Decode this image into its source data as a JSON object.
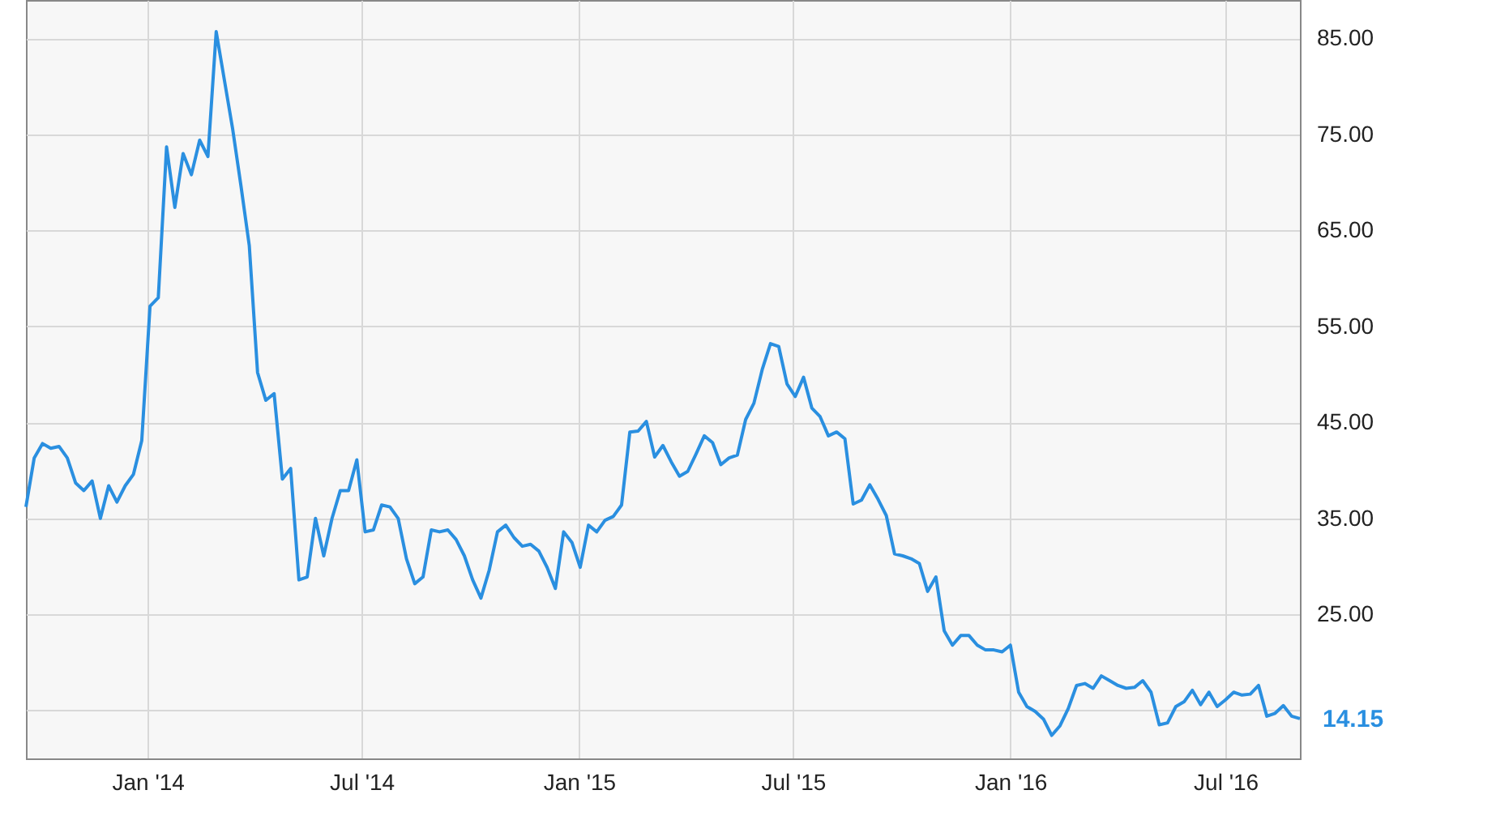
{
  "chart_data": {
    "type": "line",
    "x": [
      "2013-09-20",
      "2013-09-27",
      "2013-10-04",
      "2013-10-11",
      "2013-10-18",
      "2013-10-25",
      "2013-11-01",
      "2013-11-08",
      "2013-11-15",
      "2013-11-22",
      "2013-11-29",
      "2013-12-06",
      "2013-12-13",
      "2013-12-20",
      "2013-12-27",
      "2014-01-03",
      "2014-01-10",
      "2014-01-17",
      "2014-01-24",
      "2014-01-31",
      "2014-02-07",
      "2014-02-14",
      "2014-02-21",
      "2014-02-28",
      "2014-03-07",
      "2014-03-14",
      "2014-03-21",
      "2014-03-28",
      "2014-04-04",
      "2014-04-11",
      "2014-04-18",
      "2014-04-25",
      "2014-05-02",
      "2014-05-09",
      "2014-05-16",
      "2014-05-23",
      "2014-05-30",
      "2014-06-06",
      "2014-06-13",
      "2014-06-20",
      "2014-06-27",
      "2014-07-04",
      "2014-07-11",
      "2014-07-18",
      "2014-07-25",
      "2014-08-01",
      "2014-08-08",
      "2014-08-15",
      "2014-08-22",
      "2014-08-29",
      "2014-09-05",
      "2014-09-12",
      "2014-09-19",
      "2014-09-26",
      "2014-10-03",
      "2014-10-10",
      "2014-10-17",
      "2014-10-24",
      "2014-10-31",
      "2014-11-07",
      "2014-11-14",
      "2014-11-21",
      "2014-11-28",
      "2014-12-05",
      "2014-12-12",
      "2014-12-19",
      "2014-12-26",
      "2015-01-02",
      "2015-01-09",
      "2015-01-16",
      "2015-01-23",
      "2015-01-30",
      "2015-02-06",
      "2015-02-13",
      "2015-02-20",
      "2015-02-27",
      "2015-03-06",
      "2015-03-13",
      "2015-03-20",
      "2015-03-27",
      "2015-04-03",
      "2015-04-10",
      "2015-04-17",
      "2015-04-24",
      "2015-05-01",
      "2015-05-08",
      "2015-05-15",
      "2015-05-22",
      "2015-05-29",
      "2015-06-05",
      "2015-06-12",
      "2015-06-19",
      "2015-06-26",
      "2015-07-03",
      "2015-07-10",
      "2015-07-17",
      "2015-07-24",
      "2015-07-31",
      "2015-08-07",
      "2015-08-14",
      "2015-08-21",
      "2015-08-28",
      "2015-09-04",
      "2015-09-11",
      "2015-09-18",
      "2015-09-25",
      "2015-10-02",
      "2015-10-09",
      "2015-10-16",
      "2015-10-23",
      "2015-10-30",
      "2015-11-06",
      "2015-11-13",
      "2015-11-20",
      "2015-11-27",
      "2015-12-04",
      "2015-12-11",
      "2015-12-18",
      "2015-12-25",
      "2016-01-01",
      "2016-01-08",
      "2016-01-15",
      "2016-01-22",
      "2016-01-29",
      "2016-02-05",
      "2016-02-12",
      "2016-02-19",
      "2016-02-26",
      "2016-03-04",
      "2016-03-11",
      "2016-03-18",
      "2016-03-25",
      "2016-04-01",
      "2016-04-08",
      "2016-04-15",
      "2016-04-22",
      "2016-04-29",
      "2016-05-06",
      "2016-05-13",
      "2016-05-20",
      "2016-05-27",
      "2016-06-03",
      "2016-06-10",
      "2016-06-17",
      "2016-06-24",
      "2016-07-01",
      "2016-07-08",
      "2016-07-15",
      "2016-07-22",
      "2016-07-29",
      "2016-08-05",
      "2016-08-12",
      "2016-08-19",
      "2016-08-26",
      "2016-09-02"
    ],
    "series": [
      {
        "color": "#2a8fe0",
        "values": [
          36.2,
          41.3,
          42.8,
          42.3,
          42.5,
          41.3,
          38.7,
          37.9,
          38.9,
          35.0,
          38.4,
          36.7,
          38.4,
          39.6,
          43.1,
          57.1,
          58.0,
          73.7,
          67.4,
          73.0,
          70.8,
          74.4,
          72.7,
          85.7,
          80.6,
          75.5,
          69.6,
          63.4,
          50.2,
          47.3,
          48.0,
          39.1,
          40.2,
          28.6,
          28.9,
          35.0,
          31.1,
          35.0,
          37.9,
          37.9,
          41.1,
          33.6,
          33.8,
          36.4,
          36.2,
          35.0,
          30.8,
          28.2,
          28.9,
          33.8,
          33.6,
          33.8,
          32.8,
          31.1,
          28.6,
          26.7,
          29.6,
          33.6,
          34.3,
          33.0,
          32.1,
          32.3,
          31.6,
          29.9,
          27.7,
          33.6,
          32.5,
          29.9,
          34.3,
          33.6,
          34.8,
          35.2,
          36.4,
          44.0,
          44.1,
          45.1,
          41.4,
          42.6,
          40.9,
          39.4,
          39.9,
          41.7,
          43.6,
          42.9,
          40.6,
          41.3,
          41.6,
          45.3,
          47.0,
          50.5,
          53.2,
          52.9,
          49.0,
          47.7,
          49.7,
          46.5,
          45.6,
          43.6,
          44.0,
          43.3,
          36.5,
          36.9,
          38.5,
          37.0,
          35.3,
          31.3,
          31.1,
          30.8,
          30.3,
          27.4,
          28.9,
          23.3,
          21.8,
          22.8,
          22.8,
          21.8,
          21.3,
          21.3,
          21.1,
          21.8,
          16.9,
          15.4,
          14.9,
          14.1,
          12.4,
          13.4,
          15.2,
          17.6,
          17.8,
          17.3,
          18.6,
          18.1,
          17.6,
          17.3,
          17.4,
          18.1,
          16.9,
          13.5,
          13.7,
          15.4,
          15.9,
          17.1,
          15.6,
          16.9,
          15.4,
          16.1,
          16.9,
          16.6,
          16.7,
          17.6,
          14.4,
          14.7,
          15.5,
          14.4,
          14.15
        ]
      }
    ],
    "xlim": [
      "2013-09-20",
      "2016-09-02"
    ],
    "xticks": [
      {
        "value": "2014-01-01",
        "label": "Jan '14"
      },
      {
        "value": "2014-07-01",
        "label": "Jul '14"
      },
      {
        "value": "2015-01-01",
        "label": "Jan '15"
      },
      {
        "value": "2015-07-01",
        "label": "Jul '15"
      },
      {
        "value": "2016-01-01",
        "label": "Jan '16"
      },
      {
        "value": "2016-07-01",
        "label": "Jul '16"
      }
    ],
    "ylim": [
      10,
      89
    ],
    "yticks": [
      {
        "value": 15,
        "label": null
      },
      {
        "value": 25,
        "label": "25.00"
      },
      {
        "value": 35,
        "label": "35.00"
      },
      {
        "value": 45,
        "label": "45.00"
      },
      {
        "value": 55,
        "label": "55.00"
      },
      {
        "value": 65,
        "label": "65.00"
      },
      {
        "value": 75,
        "label": "75.00"
      },
      {
        "value": 85,
        "label": "85.00"
      }
    ],
    "annotations": [
      {
        "text": "14.15",
        "x": "2016-09-02",
        "y": 14.15
      }
    ],
    "grid": true,
    "marker": "none",
    "line_style": "solid"
  }
}
